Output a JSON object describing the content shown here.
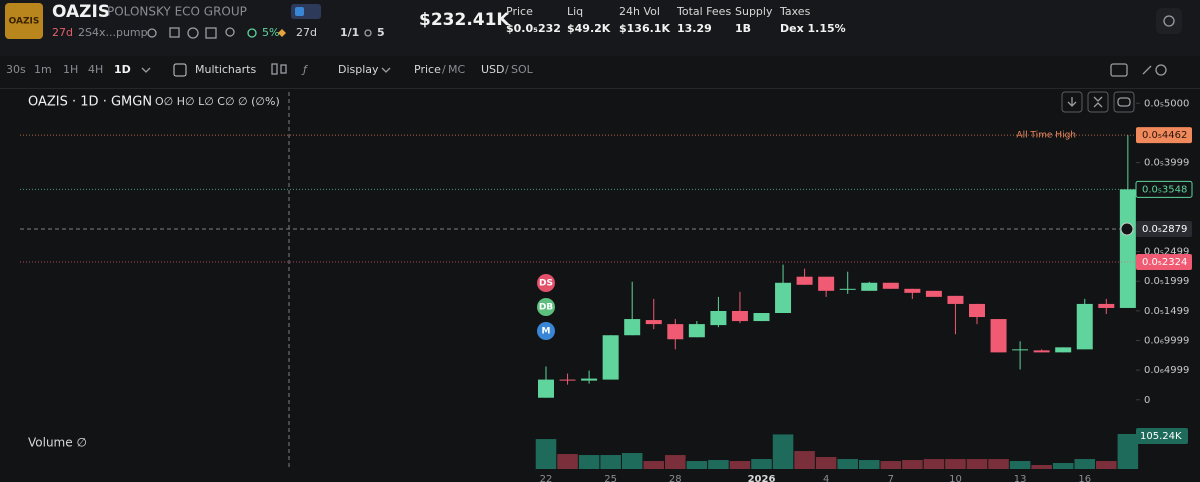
{
  "header": {
    "logo_text": "OAZIS",
    "ticker": "OAZIS",
    "name": "POLONSKY ECO GROUP",
    "age": "27d",
    "address": "2S4x...pump",
    "top10": "5%",
    "age2": "27d",
    "ratio": "1/1",
    "watchers": "5",
    "market_cap": "$232.41K",
    "stats": [
      {
        "label": "Price",
        "value": "$0.0₅232"
      },
      {
        "label": "Liq",
        "value": "$49.2K"
      },
      {
        "label": "24h Vol",
        "value": "$136.1K"
      },
      {
        "label": "Total Fees",
        "value": "13.29"
      },
      {
        "label": "Supply",
        "value": "1B"
      },
      {
        "label": "Taxes",
        "value": "Dex 1.15%"
      }
    ]
  },
  "toolbar": {
    "intervals": [
      "30s",
      "1m",
      "1H",
      "4H",
      "1D"
    ],
    "active_interval": 4,
    "multicharts": "Multicharts",
    "display": "Display",
    "price": "Price",
    "mc": "MC",
    "usd": "USD",
    "sol": "SOL",
    "sep": "/"
  },
  "chart_data": {
    "type": "candlestick",
    "title": "OAZIS · 1D · GMGN",
    "ohlc_legend": "O∅ H∅ L∅ C∅ ∅ (∅%)",
    "categories": [
      "22",
      null,
      null,
      "25",
      null,
      null,
      "28",
      null,
      null,
      null,
      "2026",
      null,
      null,
      "4",
      null,
      null,
      "7",
      null,
      null,
      "10",
      null,
      null,
      "13",
      null,
      null,
      "16",
      null,
      null
    ],
    "open": [
      3.4e-08,
      3.4e-07,
      3.23e-07,
      3.4e-07,
      1.088e-06,
      1.344e-06,
      1.276e-06,
      1.054e-06,
      1.259e-06,
      1.497e-06,
      1.327e-06,
      1.463e-06,
      2.075e-06,
      2.075e-06,
      1.871e-06,
      1.837e-06,
      1.973e-06,
      1.871e-06,
      1.837e-06,
      1.752e-06,
      1.616e-06,
      1.361e-06,
      8.5e-07,
      8.33e-07,
      7.99e-07,
      8.5e-07,
      1.616e-06,
      1.548e-06
    ],
    "high": [
      5.61e-07,
      4.42e-07,
      4.93e-07,
      1.088e-06,
      1.99e-06,
      1.701e-06,
      1.361e-06,
      1.327e-06,
      1.735e-06,
      1.82e-06,
      1.463e-06,
      2.279e-06,
      2.211e-06,
      2.075e-06,
      2.16e-06,
      1.99e-06,
      1.973e-06,
      1.871e-06,
      1.837e-06,
      1.752e-06,
      1.616e-06,
      1.361e-06,
      9.86e-07,
      8.5e-07,
      8.84e-07,
      1.701e-06,
      1.701e-06,
      4.462e-06
    ],
    "low": [
      3.4e-08,
      2.55e-07,
      2.72e-07,
      3.4e-07,
      1.088e-06,
      1.19e-06,
      8.5e-07,
      1.054e-06,
      1.224e-06,
      1.293e-06,
      1.327e-06,
      1.463e-06,
      1.939e-06,
      1.735e-06,
      1.786e-06,
      1.837e-06,
      1.871e-06,
      1.701e-06,
      1.735e-06,
      1.105e-06,
      1.276e-06,
      7.99e-07,
      5.1e-07,
      7.99e-07,
      7.99e-07,
      8.5e-07,
      1.446e-06,
      1.548e-06
    ],
    "close": [
      3.4e-07,
      3.23e-07,
      3.57e-07,
      1.088e-06,
      1.361e-06,
      1.276e-06,
      1.02e-06,
      1.276e-06,
      1.497e-06,
      1.327e-06,
      1.463e-06,
      1.973e-06,
      1.939e-06,
      1.837e-06,
      1.871e-06,
      1.973e-06,
      1.871e-06,
      1.803e-06,
      1.735e-06,
      1.616e-06,
      1.395e-06,
      7.99e-07,
      8.5e-07,
      7.99e-07,
      8.84e-07,
      1.616e-06,
      1.548e-06,
      3.548e-06
    ],
    "up_color": "#5fd49c",
    "down_color": "#f05a72",
    "ylim": [
      -5.1e-07,
      5.19e-06
    ],
    "yticks": [
      {
        "value": 5e-06,
        "label": "0.0₅5000"
      },
      {
        "value": 3.999e-06,
        "label": "0.0₅3999"
      },
      {
        "value": 2.499e-06,
        "label": "0.0₅2499"
      },
      {
        "value": 1.999e-06,
        "label": "0.0₅1999"
      },
      {
        "value": 1.499e-06,
        "label": "0.0₅1499"
      },
      {
        "value": 9.999e-07,
        "label": "0.0₆9999"
      },
      {
        "value": 4.999e-07,
        "label": "0.0₆4999"
      },
      0
    ],
    "price_tags": [
      {
        "value": 4.462e-06,
        "label": "0.0₅4462",
        "color": "#f08a5d",
        "note": "All Time High"
      },
      {
        "value": 3.548e-06,
        "label": "0.0₅3548",
        "color": "#5fd49c"
      },
      {
        "value": 2.879e-06,
        "label": "0.0₅2879",
        "color": "#2a2c31"
      },
      {
        "value": 2.324e-06,
        "label": "0.0₅2324",
        "color": "#f05a72"
      }
    ],
    "markers": [
      {
        "label": "DS",
        "color": "#e2506a"
      },
      {
        "label": "DB",
        "color": "#5cbf7e"
      },
      {
        "label": "M",
        "color": "#3a86d6"
      }
    ],
    "volume": {
      "label": "Volume ∅",
      "values": [
        90000,
        45000,
        42000,
        42000,
        48000,
        24000,
        42000,
        24000,
        27000,
        24000,
        30000,
        104000,
        54000,
        36000,
        30000,
        27000,
        24000,
        27000,
        30000,
        30000,
        30000,
        30000,
        24000,
        12000,
        18000,
        30000,
        24000,
        105240
      ],
      "value_label": "105.24K",
      "up_color": "#1e6b5c",
      "down_color": "#7a2f3a"
    }
  }
}
